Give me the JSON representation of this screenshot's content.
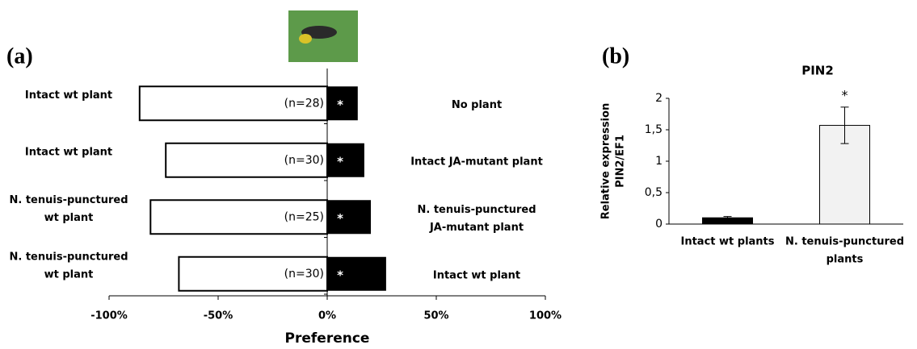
{
  "chart_data": [
    {
      "type": "diverging_bar",
      "panel_label": "(a)",
      "xlabel": "Preference",
      "left_labels": [
        [
          "Intact wt plant"
        ],
        [
          "Intact wt plant"
        ],
        [
          "N. tenuis-punctured",
          "wt plant"
        ],
        [
          "N. tenuis-punctured",
          "wt plant"
        ]
      ],
      "right_labels": [
        [
          "No plant"
        ],
        [
          "Intact JA-mutant plant"
        ],
        [
          "N. tenuis-punctured",
          "JA-mutant plant"
        ],
        [
          "Intact wt plant"
        ]
      ],
      "left_values": [
        -86,
        -74,
        -81,
        -68
      ],
      "right_values": [
        14,
        17,
        20,
        27
      ],
      "sample_sizes": [
        "(n=28)",
        "(n=30)",
        "(n=25)",
        "(n=30)"
      ],
      "significance": [
        "*",
        "*",
        "*",
        "*"
      ],
      "left_color": "#ffffff",
      "right_color": "#000000",
      "xlim": [
        -100,
        100
      ],
      "xticks": [
        {
          "value": -100,
          "label": "-100%"
        },
        {
          "value": -50,
          "label": "-50%"
        },
        {
          "value": 0,
          "label": "0%"
        },
        {
          "value": 50,
          "label": "50%"
        },
        {
          "value": 100,
          "label": "100%"
        }
      ]
    },
    {
      "type": "bar",
      "panel_label": "(b)",
      "title": "PIN2",
      "ylabel": [
        "Relative expression",
        "PIN2/EF1"
      ],
      "categories": [
        [
          "Intact wt plants"
        ],
        [
          "N. tenuis-punctured",
          "plants"
        ]
      ],
      "values": [
        0.1,
        1.57
      ],
      "errors": [
        0.02,
        0.29
      ],
      "colors": [
        "#000000",
        "#f2f2f2"
      ],
      "annotations": [
        null,
        "*"
      ],
      "ylim": [
        0,
        2
      ],
      "yticks": [
        0,
        {
          "value": 0.5,
          "label": "0,5"
        },
        1,
        {
          "value": 1.5,
          "label": "1,5"
        },
        2
      ]
    }
  ]
}
